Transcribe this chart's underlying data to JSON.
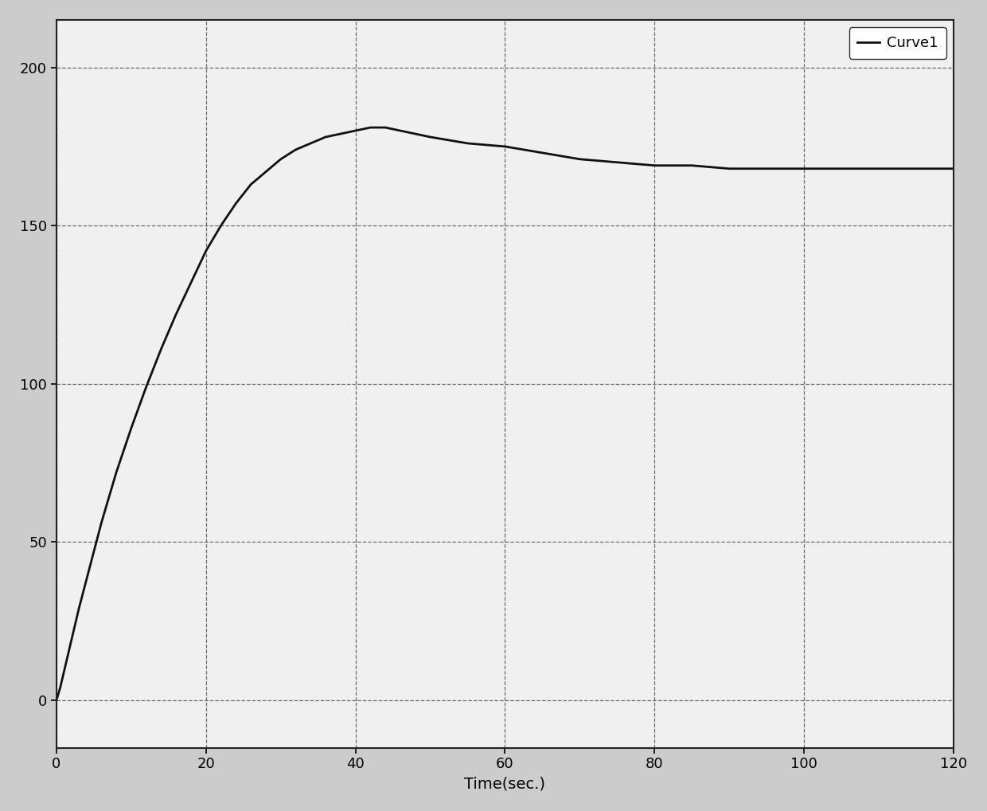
{
  "xlabel": "Time(sec.)",
  "ylabel": "",
  "xlim": [
    0,
    120
  ],
  "ylim": [
    -15,
    215
  ],
  "xticks": [
    0,
    20,
    40,
    60,
    80,
    100,
    120
  ],
  "yticks": [
    0,
    50,
    100,
    150,
    200
  ],
  "grid_color": "#555555",
  "grid_linestyle": "--",
  "line_color": "#111111",
  "line_width": 2.0,
  "legend_label": "Curve1",
  "background_color": "#f0f0f0",
  "figure_background": "#cccccc",
  "xlabel_fontsize": 14,
  "tick_fontsize": 13,
  "legend_fontsize": 13,
  "curve_x": [
    0,
    0.5,
    1,
    1.5,
    2,
    3,
    4,
    5,
    6,
    7,
    8,
    9,
    10,
    12,
    14,
    16,
    18,
    20,
    22,
    24,
    26,
    28,
    30,
    32,
    34,
    36,
    38,
    40,
    42,
    44,
    46,
    48,
    50,
    55,
    60,
    65,
    70,
    75,
    80,
    85,
    90,
    95,
    100,
    105,
    110,
    115,
    120
  ],
  "curve_y": [
    0,
    4,
    9,
    14,
    19,
    29,
    38,
    47,
    56,
    64,
    72,
    79,
    86,
    99,
    111,
    122,
    132,
    142,
    150,
    157,
    163,
    167,
    171,
    174,
    176,
    178,
    179,
    180,
    181,
    181,
    180,
    179,
    178,
    176,
    175,
    173,
    171,
    170,
    169,
    169,
    168,
    168,
    168,
    168,
    168,
    168,
    168
  ]
}
